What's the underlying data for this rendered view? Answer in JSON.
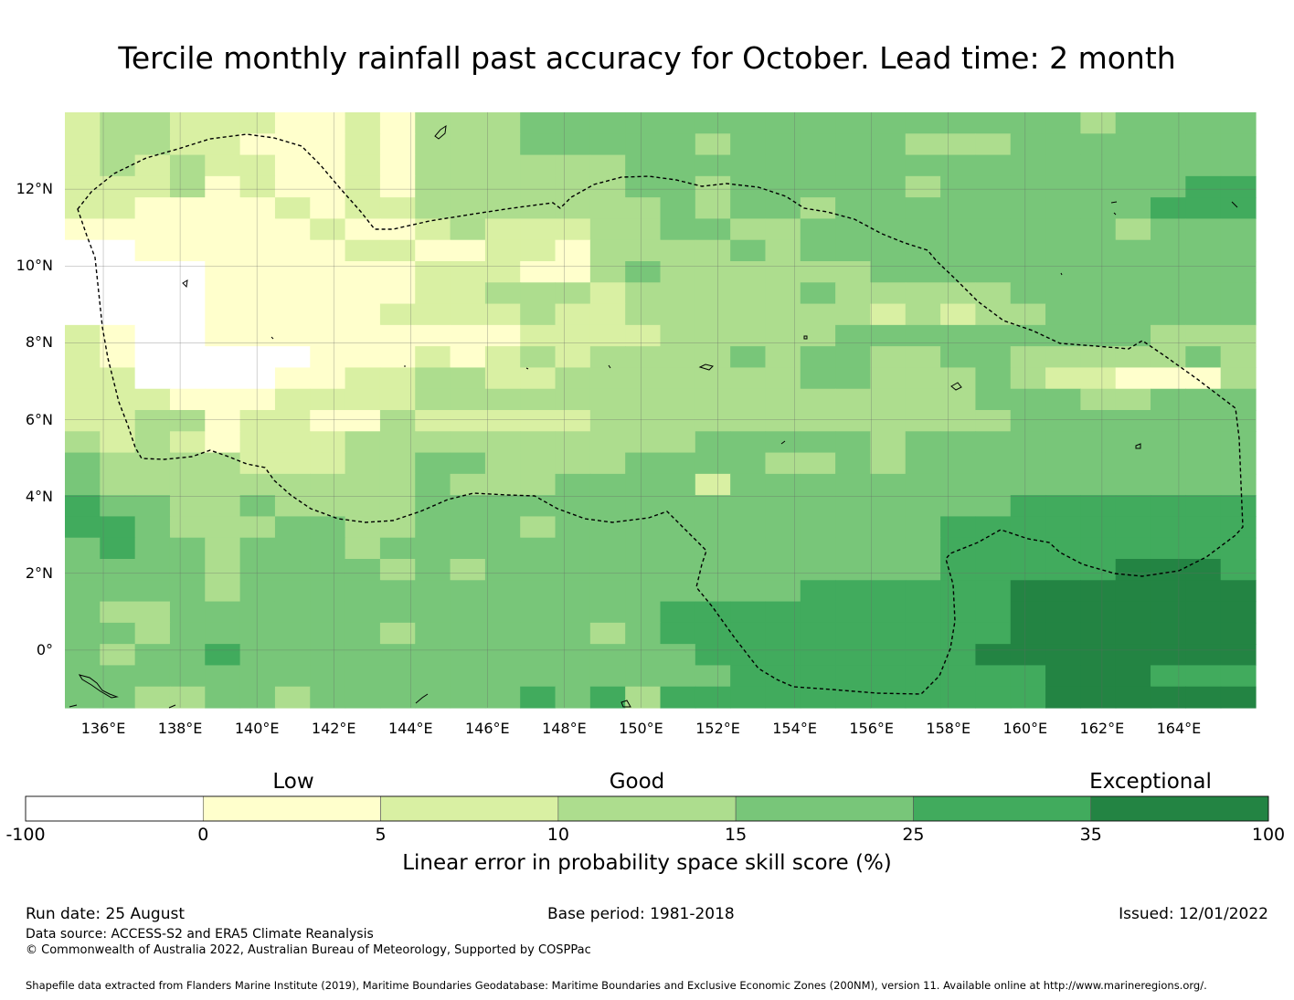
{
  "title": "Tercile monthly rainfall past accuracy for October. Lead time: 2 month",
  "map": {
    "lat_labels": [
      "12°N",
      "10°N",
      "8°N",
      "6°N",
      "4°N",
      "2°N",
      "0°"
    ],
    "lat_values": [
      12,
      10,
      8,
      6,
      4,
      2,
      0
    ],
    "lon_labels": [
      "136°E",
      "138°E",
      "140°E",
      "142°E",
      "144°E",
      "146°E",
      "148°E",
      "150°E",
      "152°E",
      "154°E",
      "156°E",
      "158°E",
      "160°E",
      "162°E",
      "164°E"
    ],
    "lon_values": [
      136,
      138,
      140,
      142,
      144,
      146,
      148,
      150,
      152,
      154,
      156,
      158,
      160,
      162,
      164
    ],
    "lon_range": [
      135,
      166
    ],
    "lat_range": [
      -1.5,
      14
    ],
    "cell_size_deg": 0.833,
    "grid_rows_top_to_bottom": [
      "2332221121333444444444444444434444",
      "2332211121333444443444443334444444",
      "2323221121333333444444444444444444",
      "2223121121333333443444443444444455",
      "2211112122333333343443444444444555",
      "1111111211232223344334444444443444",
      "0011111122112213333434444444444444",
      "0000111111222113433333344444444444",
      "0000111111223332333334333334444444",
      "0000111112222322333333323233444444",
      "2100111111111222233333444444444333",
      "2100000111212323333434433443333343",
      "2200001122332233333334433343221113",
      "2221112222333333333333333344433444",
      "2233122113222223333333333334444444",
      "3232122233333333334444434444444444",
      "4333322233443333444433434444444444",
      "4333333333433344442444444444444444",
      "5443343333444444444444444445555555",
      "5543334433444344444444444555555555",
      "4544344434444444444444444555555555",
      "4444344443434444444444444555556665",
      "4444344444444444444445555556666666",
      "4334444444444444455555555556666666",
      "4434444443444443455555555556666666",
      "4344544444444444445555555566666666",
      "4444444444444444444555555555666555",
      "4433443444444545355555555555666666"
    ],
    "boundary_style": "dashed"
  },
  "colorbar": {
    "category_labels": {
      "low": "Low",
      "good": "Good",
      "exceptional": "Exceptional"
    },
    "ticks": [
      "-100",
      "0",
      "5",
      "10",
      "15",
      "25",
      "35",
      "100"
    ],
    "colors": [
      "#ffffff",
      "#ffffcc",
      "#d9f0a3",
      "#addd8e",
      "#78c679",
      "#41ab5d",
      "#238443"
    ],
    "title": "Linear error in probability space skill score (%)"
  },
  "footer": {
    "run_date": "Run date: 25 August",
    "base_period": "Base period: 1981-2018",
    "issued": "Issued: 12/01/2022",
    "data_source": "Data source: ACCESS-S2 and ERA5 Climate Reanalysis",
    "copyright": "© Commonwealth of Australia 2022, Australian Bureau of Meteorology, Supported by COSPPac",
    "shapefile": "Shapefile data extracted from Flanders Marine Institute (2019), Maritime Boundaries Geodatabase: Maritime Boundaries and Exclusive Economic Zones (200NM), version 11. Available online at http://www.marineregions.org/."
  }
}
